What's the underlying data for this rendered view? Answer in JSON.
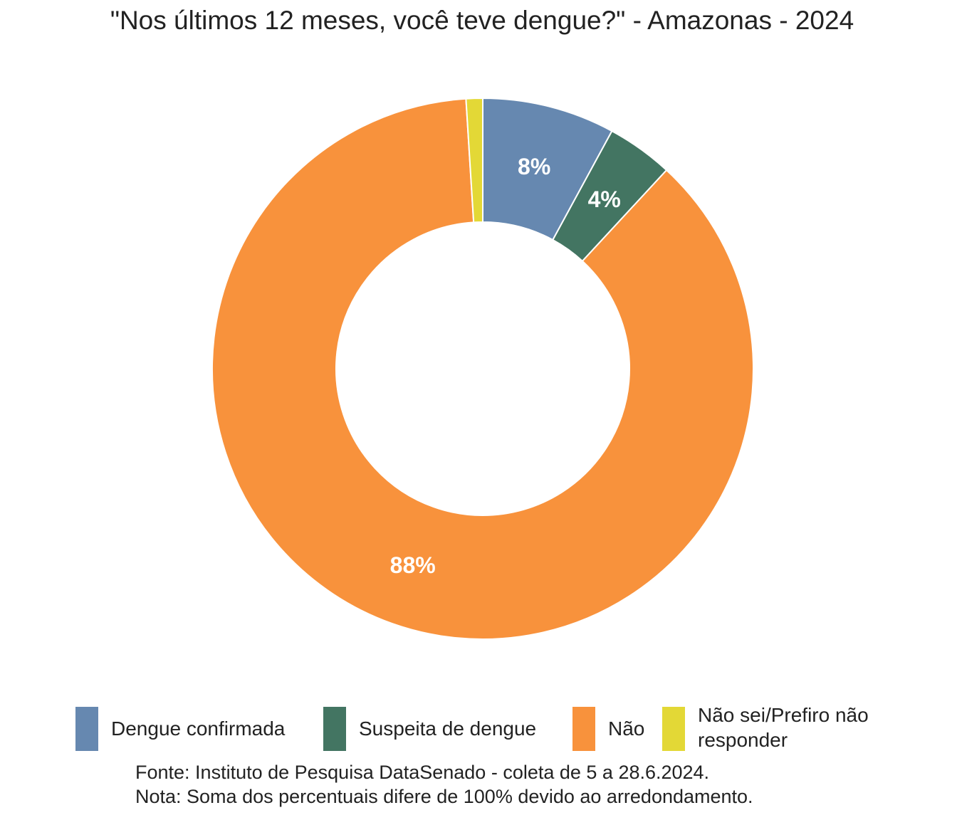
{
  "chart_data": {
    "type": "pie",
    "title": "\"Nos últimos 12 meses, você teve dengue?\" - Amazonas - 2024",
    "categories": [
      "Dengue confirmada",
      "Suspeita de dengue",
      "Não",
      "Não sei/Prefiro não responder"
    ],
    "values": [
      8,
      4,
      88,
      1
    ],
    "value_labels": [
      "8%",
      "4%",
      "88%",
      ""
    ],
    "colors": [
      "#6688b0",
      "#437562",
      "#f8923c",
      "#e3d836"
    ],
    "donut": true,
    "legend_position": "bottom"
  },
  "footer": {
    "source": "Fonte: Instituto de Pesquisa DataSenado - coleta de 5 a 28.6.2024.",
    "note": "Nota: Soma dos percentuais difere de 100% devido ao arredondamento."
  }
}
